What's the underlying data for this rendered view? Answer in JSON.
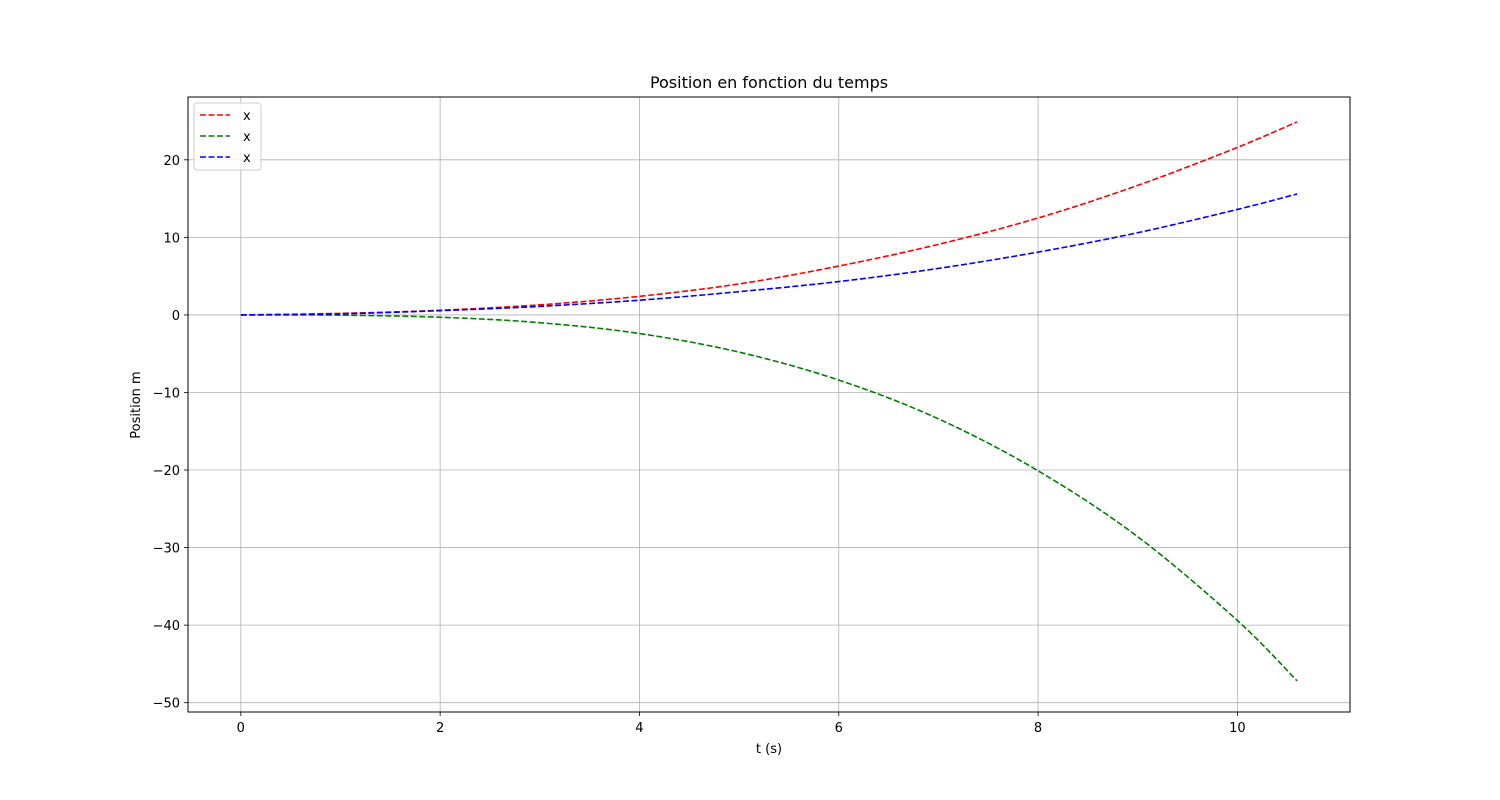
{
  "chart_data": {
    "type": "line",
    "title": "Position en fonction du temps",
    "xlabel": "t (s)",
    "ylabel": "Position m",
    "xlim": [
      -0.53,
      11.13
    ],
    "ylim": [
      -51.2,
      28.1
    ],
    "xticks": [
      0,
      2,
      4,
      6,
      8,
      10
    ],
    "yticks": [
      20,
      10,
      0,
      -10,
      -20,
      -30,
      -40,
      -50
    ],
    "grid": true,
    "legend_position": "top-left",
    "series": [
      {
        "name": "x",
        "color": "#ff0000",
        "style": "dashed",
        "x": [
          0,
          1,
          2,
          3,
          4,
          5,
          6,
          7,
          8,
          9,
          10,
          10.6
        ],
        "y": [
          0,
          0.2,
          0.6,
          1.3,
          2.4,
          4.0,
          6.3,
          9.1,
          12.5,
          16.7,
          21.6,
          24.9
        ]
      },
      {
        "name": "x",
        "color": "#008000",
        "style": "dashed",
        "x": [
          0,
          1,
          2,
          3,
          4,
          5,
          6,
          7,
          8,
          9,
          10,
          10.6
        ],
        "y": [
          0,
          -0.03,
          -0.3,
          -1.0,
          -2.4,
          -4.8,
          -8.4,
          -13.4,
          -20.1,
          -28.6,
          -39.4,
          -47.2
        ]
      },
      {
        "name": "x",
        "color": "#0000ff",
        "style": "dashed",
        "x": [
          0,
          1,
          2,
          3,
          4,
          5,
          6,
          7,
          8,
          9,
          10,
          10.6
        ],
        "y": [
          0,
          0.15,
          0.55,
          1.1,
          1.9,
          3.0,
          4.3,
          6.0,
          8.1,
          10.6,
          13.6,
          15.6
        ]
      }
    ]
  }
}
